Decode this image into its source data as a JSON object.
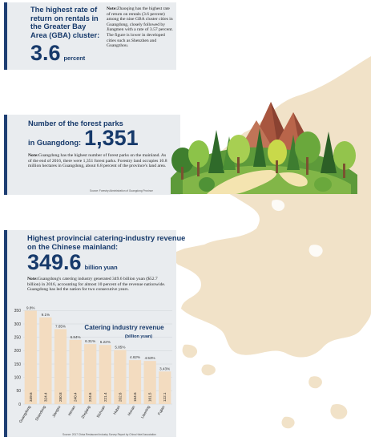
{
  "section1": {
    "title": "The highest rate of return on rentals in the Greater Bay Area (GBA) cluster:",
    "big_number": "3.6",
    "unit": "percent",
    "note_label": "Note:",
    "note_text": "Zhaoqing has the highest rate of return on rentals (3.6 percent) among the nine GBA cluster cities in Guangdong, closely followed by Jiangmen with a rate of 3.57 percent. The figure is lower in developed cities such as Shenzhen and Guangzhou."
  },
  "section2": {
    "title_line1": "Number of the forest parks",
    "title_line2": "in Guangdong:",
    "big_number": "1,351",
    "note_label": "Note:",
    "note_text": "Guangdong has the highest number of forest parks on the mainland. As of the end of 2016, there were 1,351 forest parks. Forestry land occupies 10.8 million hectares in Guangdong, about 6.8 percent of the province's land area.",
    "source": "Source: Forestry Administration of Guangdong Province"
  },
  "section3": {
    "title_line1": "Highest provincial catering-industry revenue",
    "title_line2": "on the Chinese mainland:",
    "big_number": "349.6",
    "unit": "billion yuan",
    "note_label": "Note:",
    "note_text": "Guangdong's catering industry generated 349.6 billion yuan ($52.7 billion) in 2016, accounting for almost 10 percent of the revenue nationwide. Guangdong has led the nation for two consecutive years.",
    "source": "Source: 2017 China Restaurant Industry Survey Report by China Hotel Association"
  },
  "chart_data": {
    "type": "bar",
    "title": "Catering industry revenue",
    "subtitle": "(billion yuan)",
    "categories": [
      "Guangdong",
      "Shandong",
      "Jiangsu",
      "Henan",
      "Zhejiang",
      "Sichuan",
      "Hubei",
      "Hunan",
      "Liaoning",
      "Fujian"
    ],
    "values": [
      349.6,
      324.4,
      280.8,
      240.4,
      224.6,
      221.4,
      202.6,
      164.6,
      161.5,
      122.1
    ],
    "value_labels": [
      "349.6",
      "324.4",
      "280.8",
      "240.4",
      "224.6",
      "221.4",
      "202.6",
      "164.6",
      "161.5",
      "122.1"
    ],
    "shares": [
      "9.8%",
      "9.1%",
      "7.85%",
      "6.84%",
      "6.31%",
      "6.22%",
      "5.85%",
      "4.62%",
      "4.53%",
      "3.43%"
    ],
    "yticks": [
      0,
      50,
      100,
      150,
      200,
      250,
      300,
      350
    ],
    "ylim": [
      0,
      360
    ],
    "bar_color": "#f3dcc0",
    "grid": true
  },
  "colors": {
    "navy": "#1e3f73",
    "title_blue": "#173a6b",
    "panel": "#e9ecef",
    "land": "#f1e2c8",
    "bar": "#f3dcc0"
  }
}
